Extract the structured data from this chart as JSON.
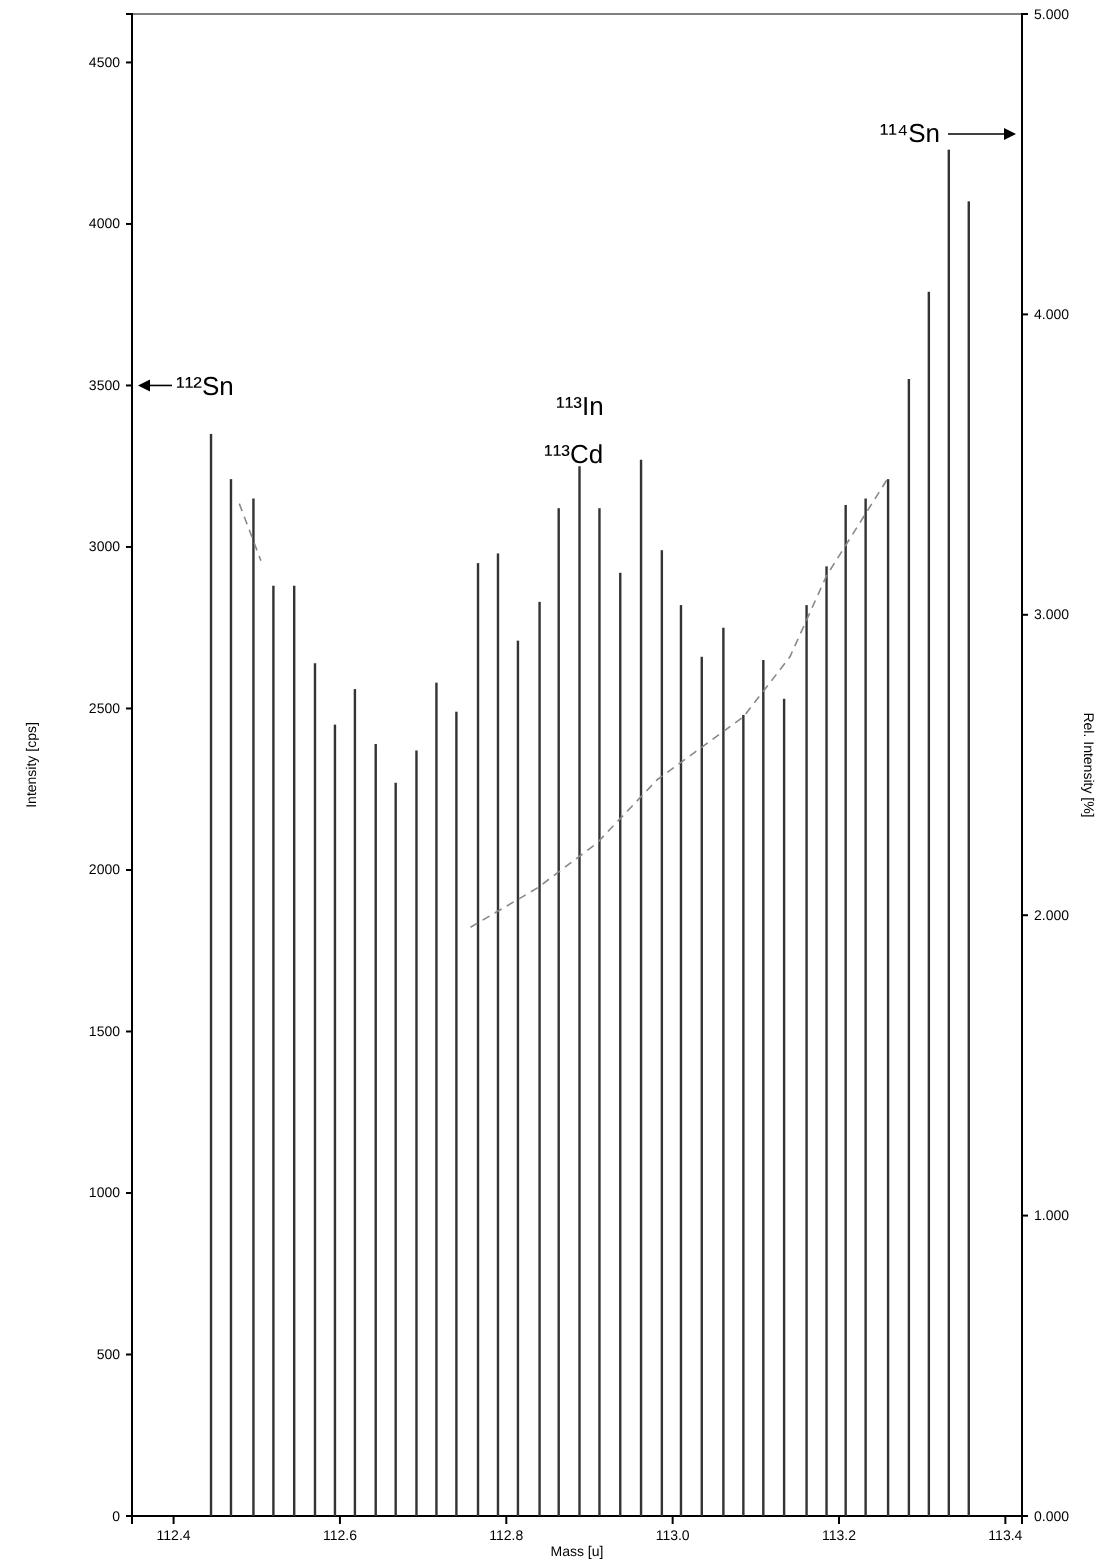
{
  "chart_data": {
    "type": "bar",
    "xlabel": "Mass [u]",
    "ylabel": "Intensity [cps]",
    "y2label": "Rel. Intensity [%]",
    "xlim": [
      112.35,
      113.42
    ],
    "xticks": [
      {
        "value": 112.4,
        "label": "112.4"
      },
      {
        "value": 112.6,
        "label": "112.6"
      },
      {
        "value": 112.8,
        "label": "112.8"
      },
      {
        "value": 113.0,
        "label": "113.0"
      },
      {
        "value": 113.2,
        "label": "113.2"
      },
      {
        "value": 113.4,
        "label": "113.4"
      }
    ],
    "ylim": [
      0,
      4650
    ],
    "yticks": [
      0,
      500,
      1000,
      1500,
      2000,
      2500,
      3000,
      3500,
      4000,
      4500
    ],
    "y2lim": [
      0,
      5
    ],
    "y2ticks": [
      {
        "value": 0,
        "label": "0.000"
      },
      {
        "value": 1,
        "label": "1.000"
      },
      {
        "value": 2,
        "label": "2.000"
      },
      {
        "value": 3,
        "label": "3.000"
      },
      {
        "value": 4,
        "label": "4.000"
      },
      {
        "value": 5,
        "label": "5.000"
      }
    ],
    "series": [
      {
        "color": "#333333",
        "x": [
          112.445,
          112.469,
          112.496,
          112.52,
          112.545,
          112.57,
          112.594,
          112.618,
          112.643,
          112.667,
          112.692,
          112.716,
          112.74,
          112.766,
          112.79,
          112.814,
          112.84,
          112.863,
          112.888,
          112.912,
          112.937,
          112.962,
          112.987,
          113.01,
          113.035,
          113.061,
          113.085,
          113.109,
          113.134,
          113.161,
          113.185,
          113.208,
          113.232,
          113.259,
          113.284,
          113.308,
          113.332,
          113.356
        ],
        "values": [
          3350,
          3210,
          3150,
          2880,
          2880,
          2640,
          2450,
          2560,
          2390,
          2270,
          2370,
          2580,
          2490,
          2950,
          2980,
          2710,
          2830,
          3120,
          3250,
          3120,
          2920,
          3270,
          2990,
          2820,
          2660,
          2750,
          2480,
          2650,
          2530,
          2820,
          2940,
          3130,
          3150,
          3210,
          3520,
          3790,
          4230,
          4070
        ]
      },
      {
        "type": "line",
        "axis": "y2",
        "color": "#888888",
        "line_style": "dashed",
        "x": [
          112.479,
          112.505,
          112.53,
          112.757,
          112.837,
          112.909,
          112.981,
          113.085,
          113.141,
          113.185,
          113.26
        ],
        "values": [
          3.37,
          3.18,
          null,
          1.96,
          2.09,
          2.24,
          2.45,
          2.66,
          2.86,
          3.13,
          3.46
        ]
      }
    ],
    "annotations": [
      "¹¹²Sn",
      "¹¹³In",
      "¹¹³Cd",
      "¹¹⁴Sn"
    ],
    "grid": false
  }
}
